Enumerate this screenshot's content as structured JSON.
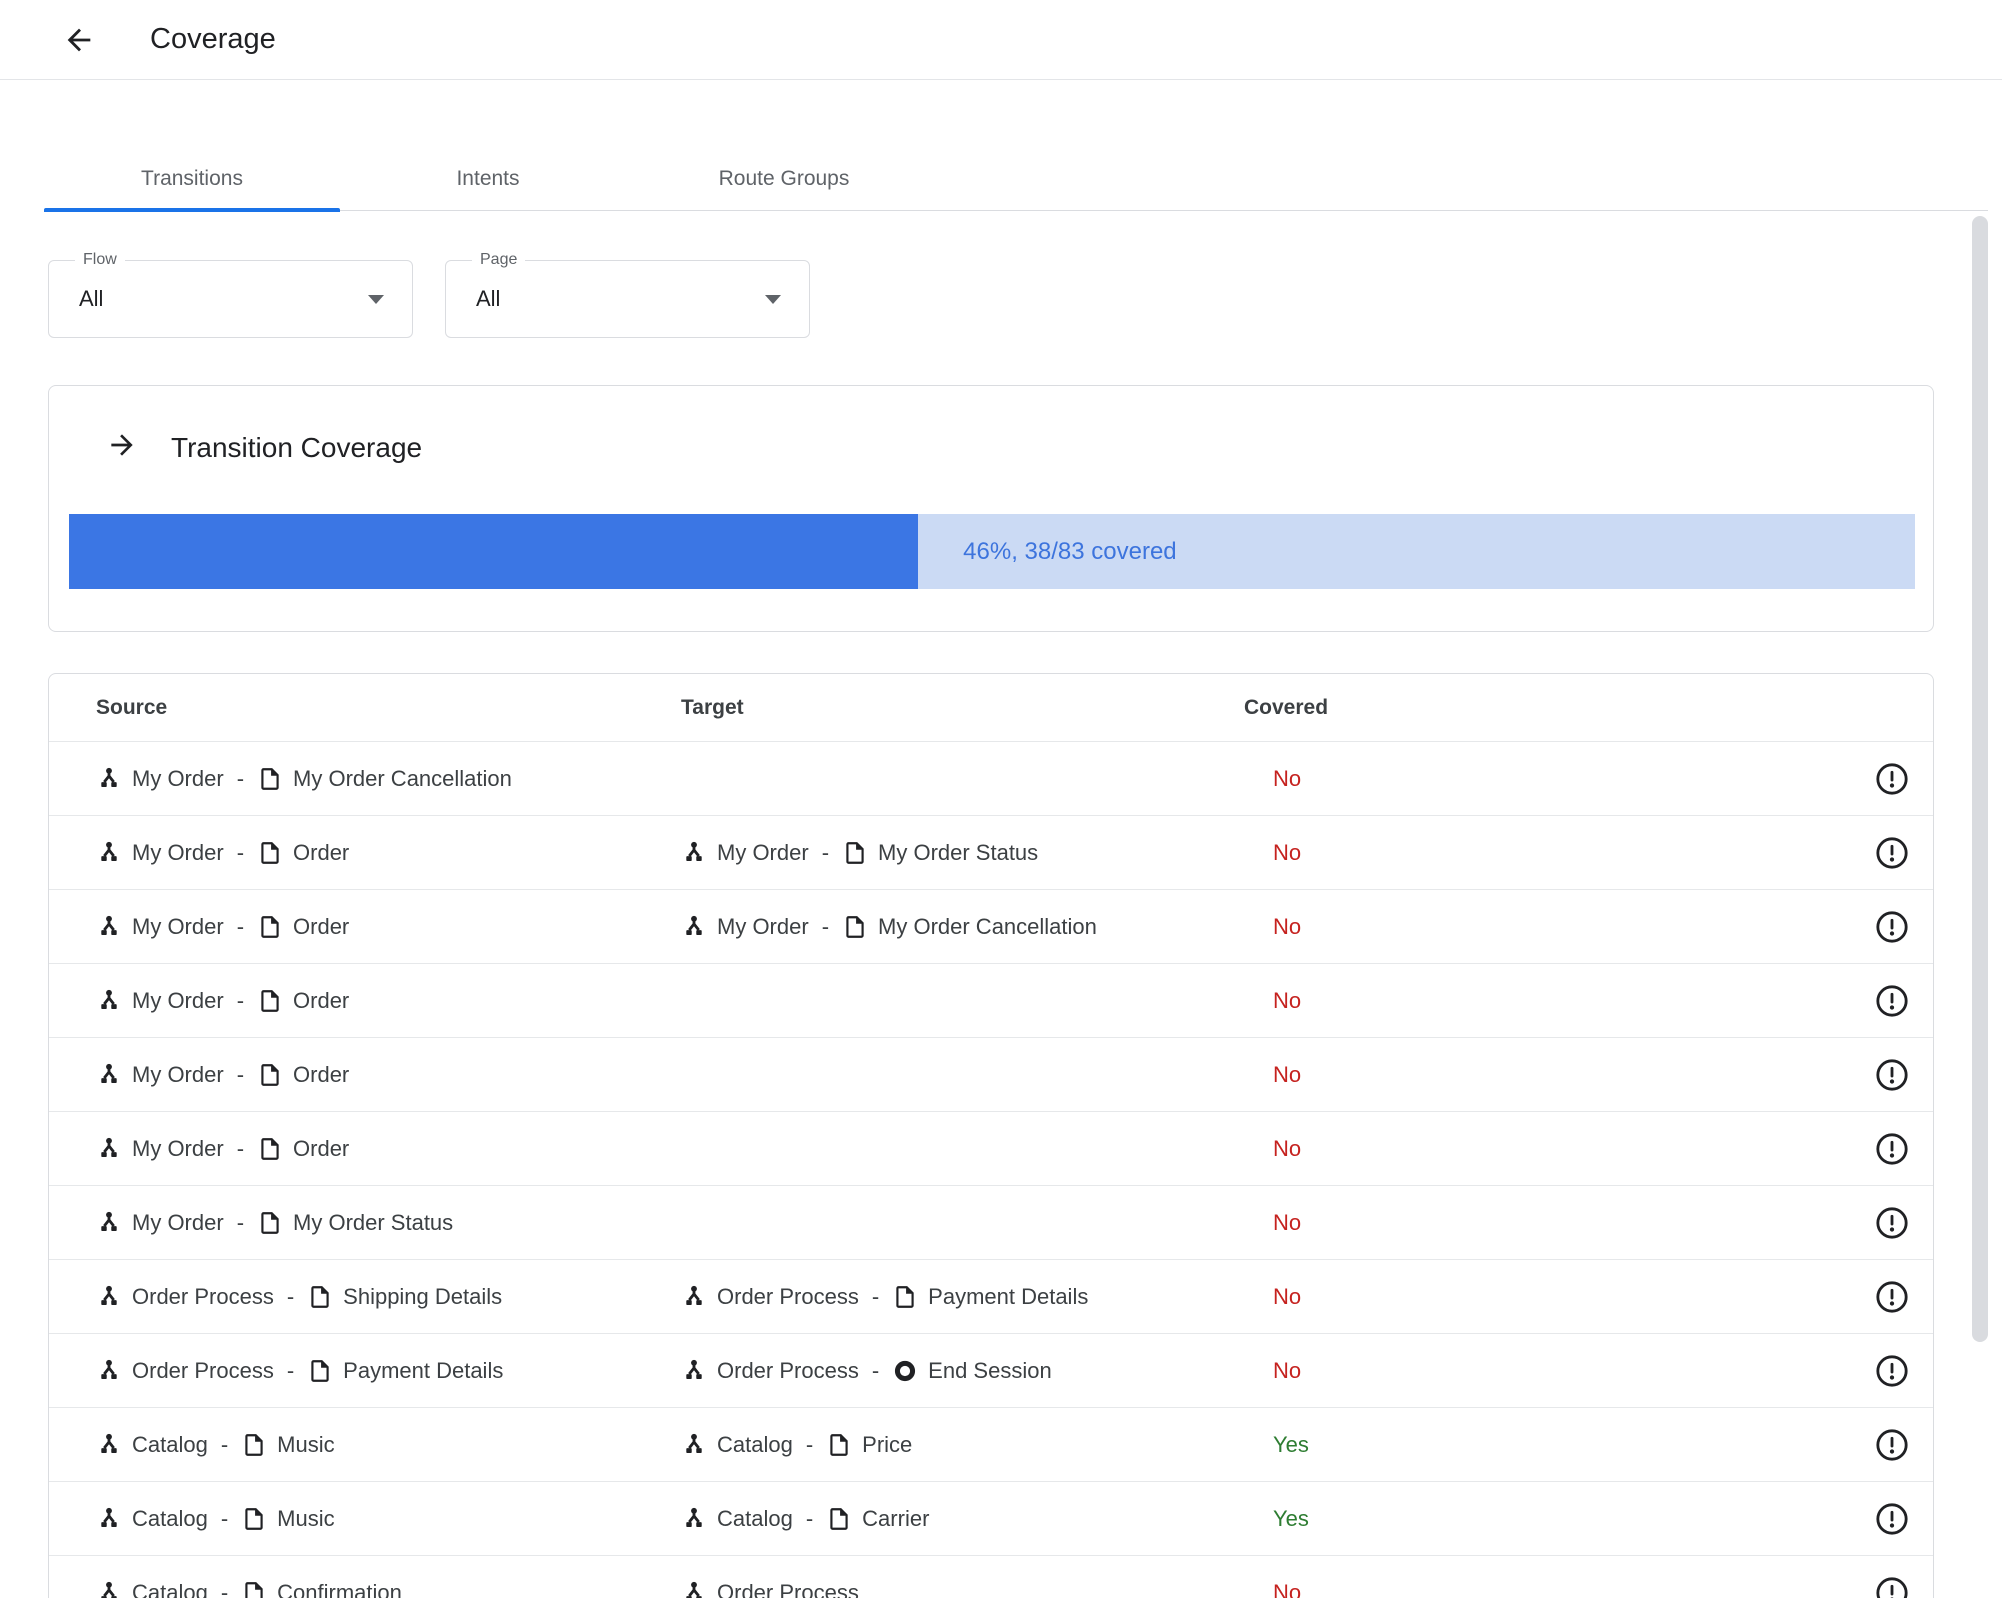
{
  "header": {
    "title": "Coverage",
    "back_icon": "arrow-back-icon"
  },
  "tabs": [
    {
      "label": "Transitions",
      "active": true
    },
    {
      "label": "Intents",
      "active": false
    },
    {
      "label": "Route Groups",
      "active": false
    }
  ],
  "filters": {
    "flow": {
      "label": "Flow",
      "value": "All"
    },
    "page": {
      "label": "Page",
      "value": "All"
    }
  },
  "coverage_card": {
    "icon": "arrow-forward-icon",
    "title": "Transition Coverage",
    "percent": 46,
    "label": "46%, 38/83 covered",
    "bar_fill_color": "#3b76e4",
    "bar_bg_color": "#cbdaf4",
    "label_color": "#3d74dd"
  },
  "table": {
    "columns": [
      "Source",
      "Target",
      "Covered"
    ],
    "row_icons": {
      "flow": "flow-icon",
      "page": "page-icon",
      "end_session": "end-session-icon",
      "info": "error-info-icon"
    },
    "rows": [
      {
        "source": {
          "flow": "My Order",
          "page": "My Order Cancellation"
        },
        "target": null,
        "covered": "No"
      },
      {
        "source": {
          "flow": "My Order",
          "page": "Order"
        },
        "target": {
          "flow": "My Order",
          "page": "My Order Status",
          "end_session": false
        },
        "covered": "No"
      },
      {
        "source": {
          "flow": "My Order",
          "page": "Order"
        },
        "target": {
          "flow": "My Order",
          "page": "My Order Cancellation",
          "end_session": false
        },
        "covered": "No"
      },
      {
        "source": {
          "flow": "My Order",
          "page": "Order"
        },
        "target": null,
        "covered": "No"
      },
      {
        "source": {
          "flow": "My Order",
          "page": "Order"
        },
        "target": null,
        "covered": "No"
      },
      {
        "source": {
          "flow": "My Order",
          "page": "Order"
        },
        "target": null,
        "covered": "No"
      },
      {
        "source": {
          "flow": "My Order",
          "page": "My Order Status"
        },
        "target": null,
        "covered": "No"
      },
      {
        "source": {
          "flow": "Order Process",
          "page": "Shipping Details"
        },
        "target": {
          "flow": "Order Process",
          "page": "Payment Details",
          "end_session": false
        },
        "covered": "No"
      },
      {
        "source": {
          "flow": "Order Process",
          "page": "Payment Details"
        },
        "target": {
          "flow": "Order Process",
          "page": "End Session",
          "end_session": true
        },
        "covered": "No"
      },
      {
        "source": {
          "flow": "Catalog",
          "page": "Music"
        },
        "target": {
          "flow": "Catalog",
          "page": "Price",
          "end_session": false
        },
        "covered": "Yes"
      },
      {
        "source": {
          "flow": "Catalog",
          "page": "Music"
        },
        "target": {
          "flow": "Catalog",
          "page": "Carrier",
          "end_session": false
        },
        "covered": "Yes"
      },
      {
        "source": {
          "flow": "Catalog",
          "page": "Confirmation"
        },
        "target": {
          "flow": "Order Process",
          "page": null,
          "end_session": false
        },
        "covered": "No"
      }
    ]
  },
  "colors": {
    "accent": "#1a73e8",
    "yes": "#2e7d32",
    "no": "#c5221f"
  }
}
